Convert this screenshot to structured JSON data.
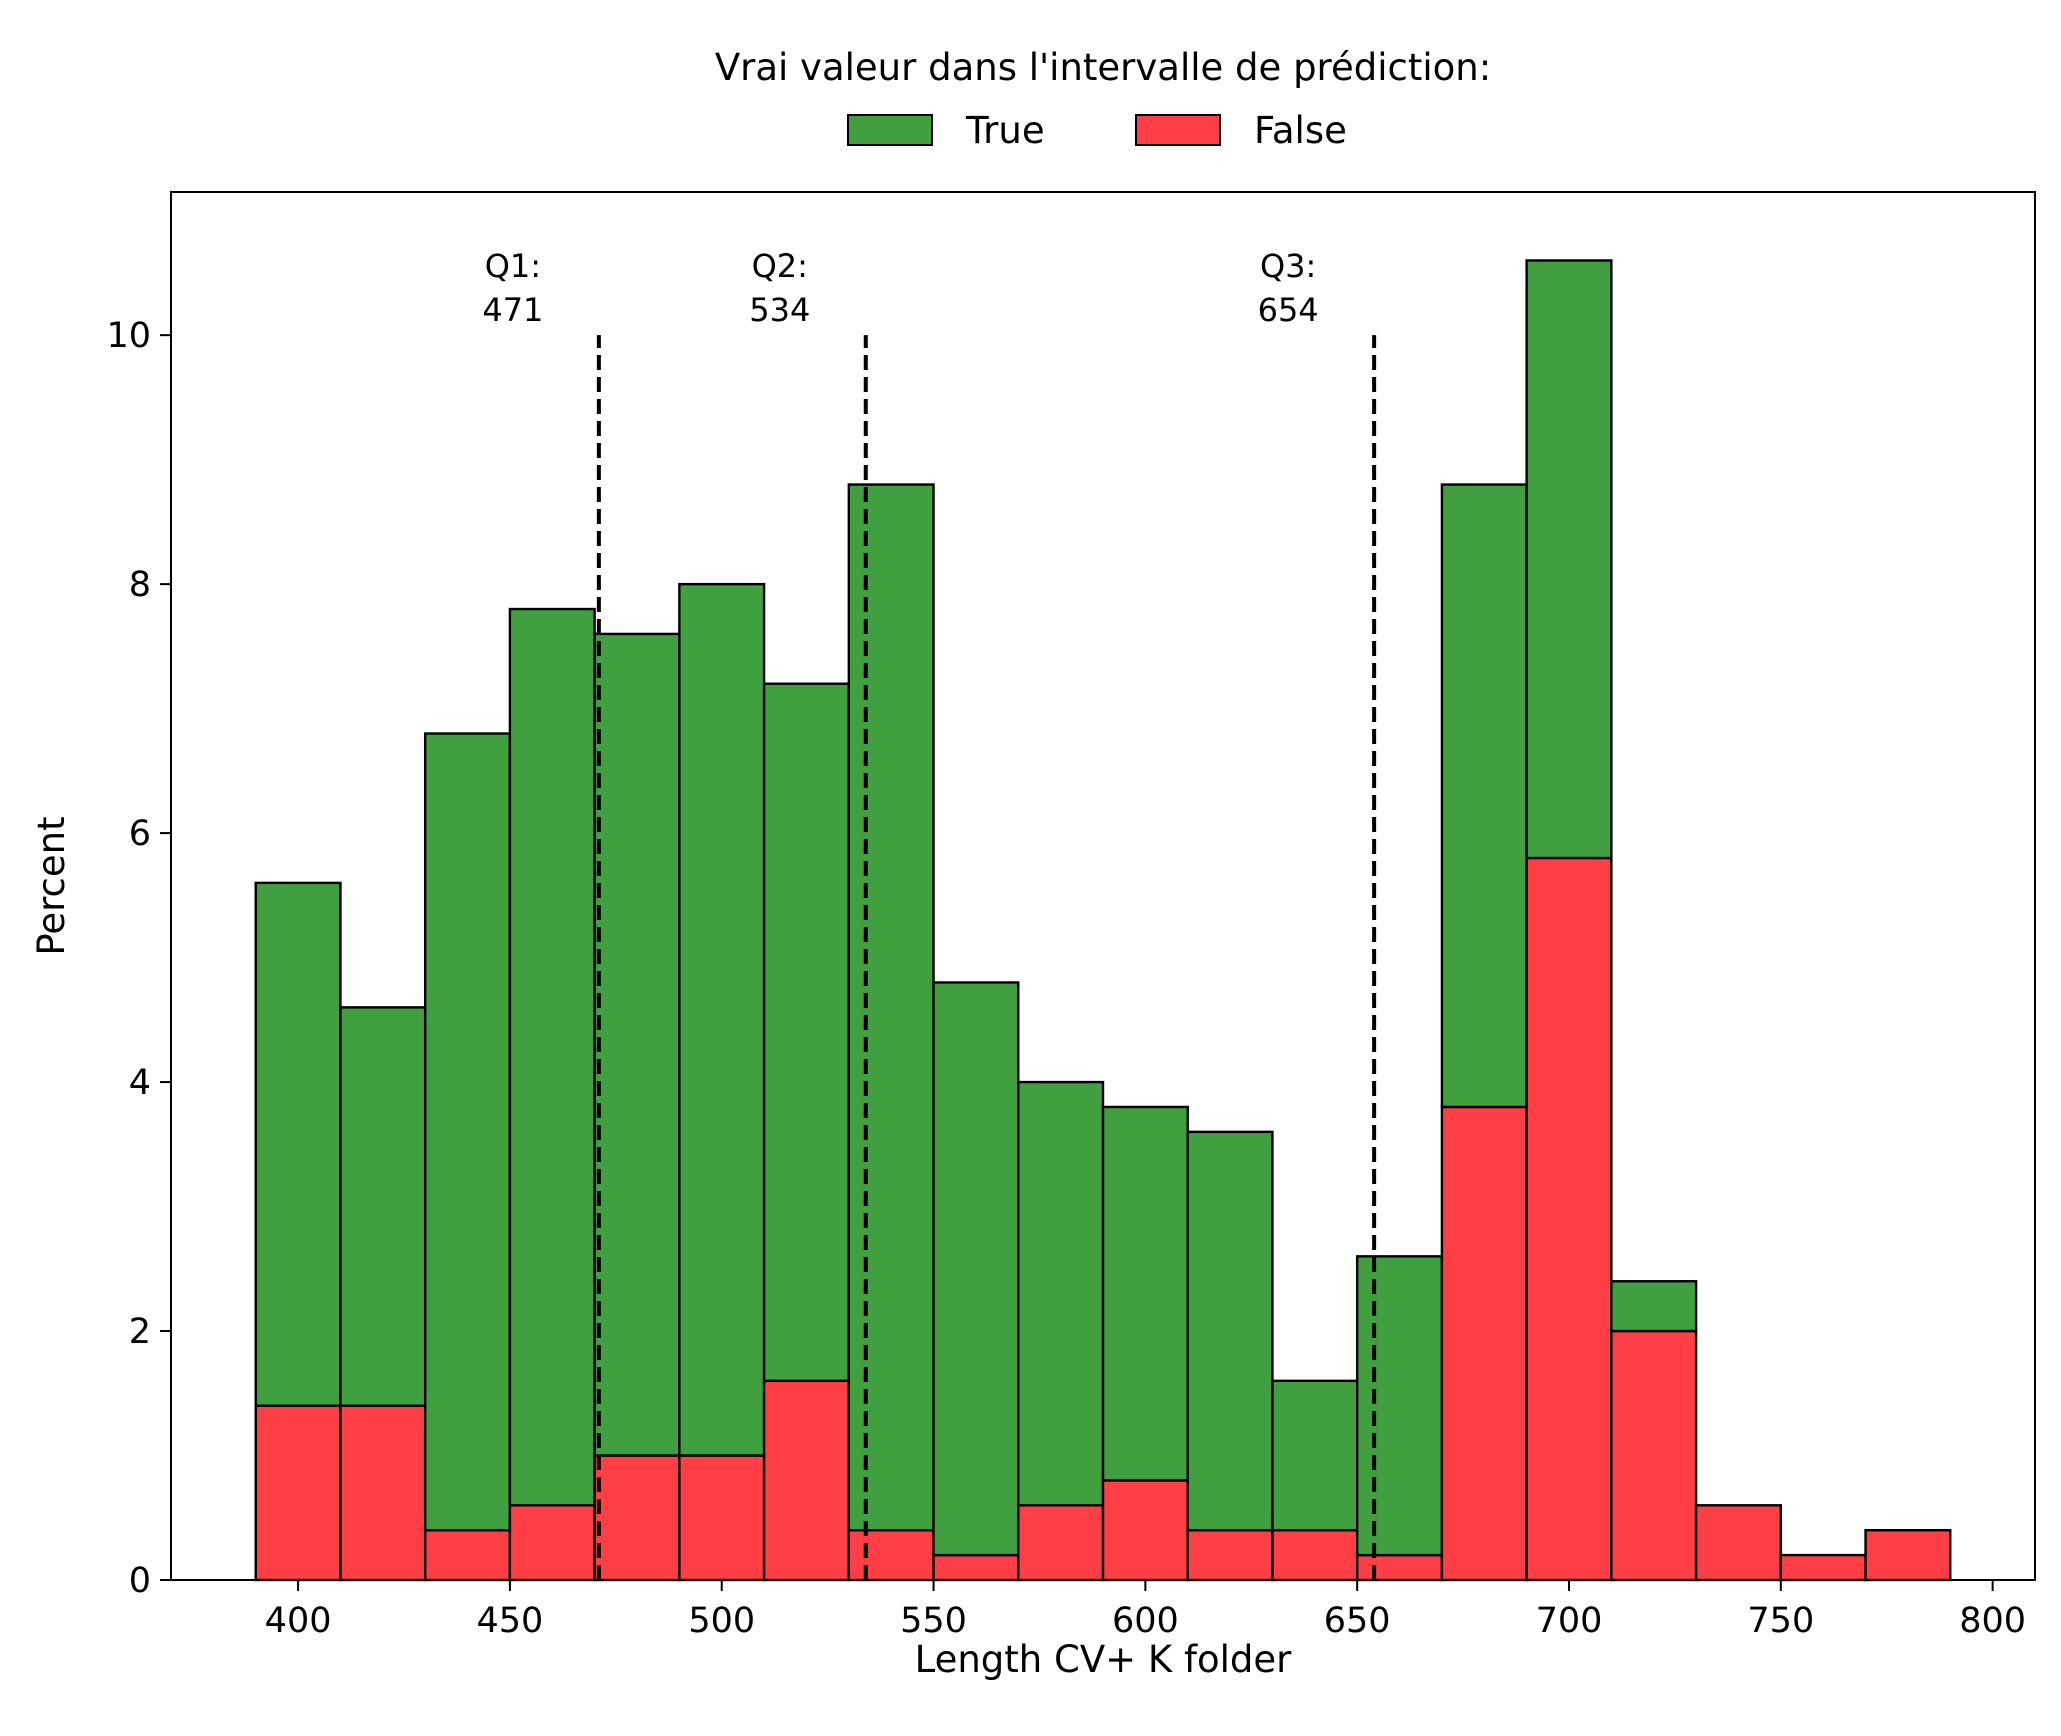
{
  "chart_data": {
    "type": "bar",
    "stacked": true,
    "title": "",
    "legend": {
      "title": "Vrai valeur dans l'intervalle de prédiction:",
      "placement": "top-center, outside plot",
      "entries": [
        "True",
        "False"
      ]
    },
    "xlabel": "Length CV+ K folder",
    "ylabel": "Percent",
    "xlim": [
      370,
      810
    ],
    "ylim": [
      0,
      11.15
    ],
    "xticks": [
      400,
      450,
      500,
      550,
      600,
      650,
      700,
      750,
      800
    ],
    "yticks": [
      0,
      2,
      4,
      6,
      8,
      10
    ],
    "bin_edges": [
      390,
      410,
      430,
      450,
      470,
      490,
      510,
      530,
      550,
      570,
      590,
      610,
      630,
      650,
      670,
      690,
      710,
      730,
      750,
      770,
      790
    ],
    "series": [
      {
        "name": "False",
        "color": "#ff0000",
        "values": [
          1.4,
          1.4,
          0.4,
          0.6,
          1.0,
          1.0,
          1.6,
          0.4,
          0.2,
          0.6,
          0.8,
          0.4,
          0.4,
          0.2,
          3.8,
          5.8,
          2.0,
          0.6,
          0.2,
          0.4
        ]
      },
      {
        "name": "True",
        "color": "#008000",
        "values": [
          4.2,
          3.2,
          6.4,
          7.2,
          6.6,
          7.0,
          5.6,
          8.4,
          4.6,
          3.4,
          3.0,
          3.2,
          1.2,
          2.4,
          5.0,
          4.8,
          0.4,
          0.0,
          0.0,
          0.0
        ]
      }
    ],
    "quartiles": [
      {
        "label": "Q1:",
        "value": 471,
        "value_text": "471"
      },
      {
        "label": "Q2:",
        "value": 534,
        "value_text": "534"
      },
      {
        "label": "Q3:",
        "value": 654,
        "value_text": "654"
      }
    ],
    "quartile_line_top": 10.0,
    "grid": false
  }
}
